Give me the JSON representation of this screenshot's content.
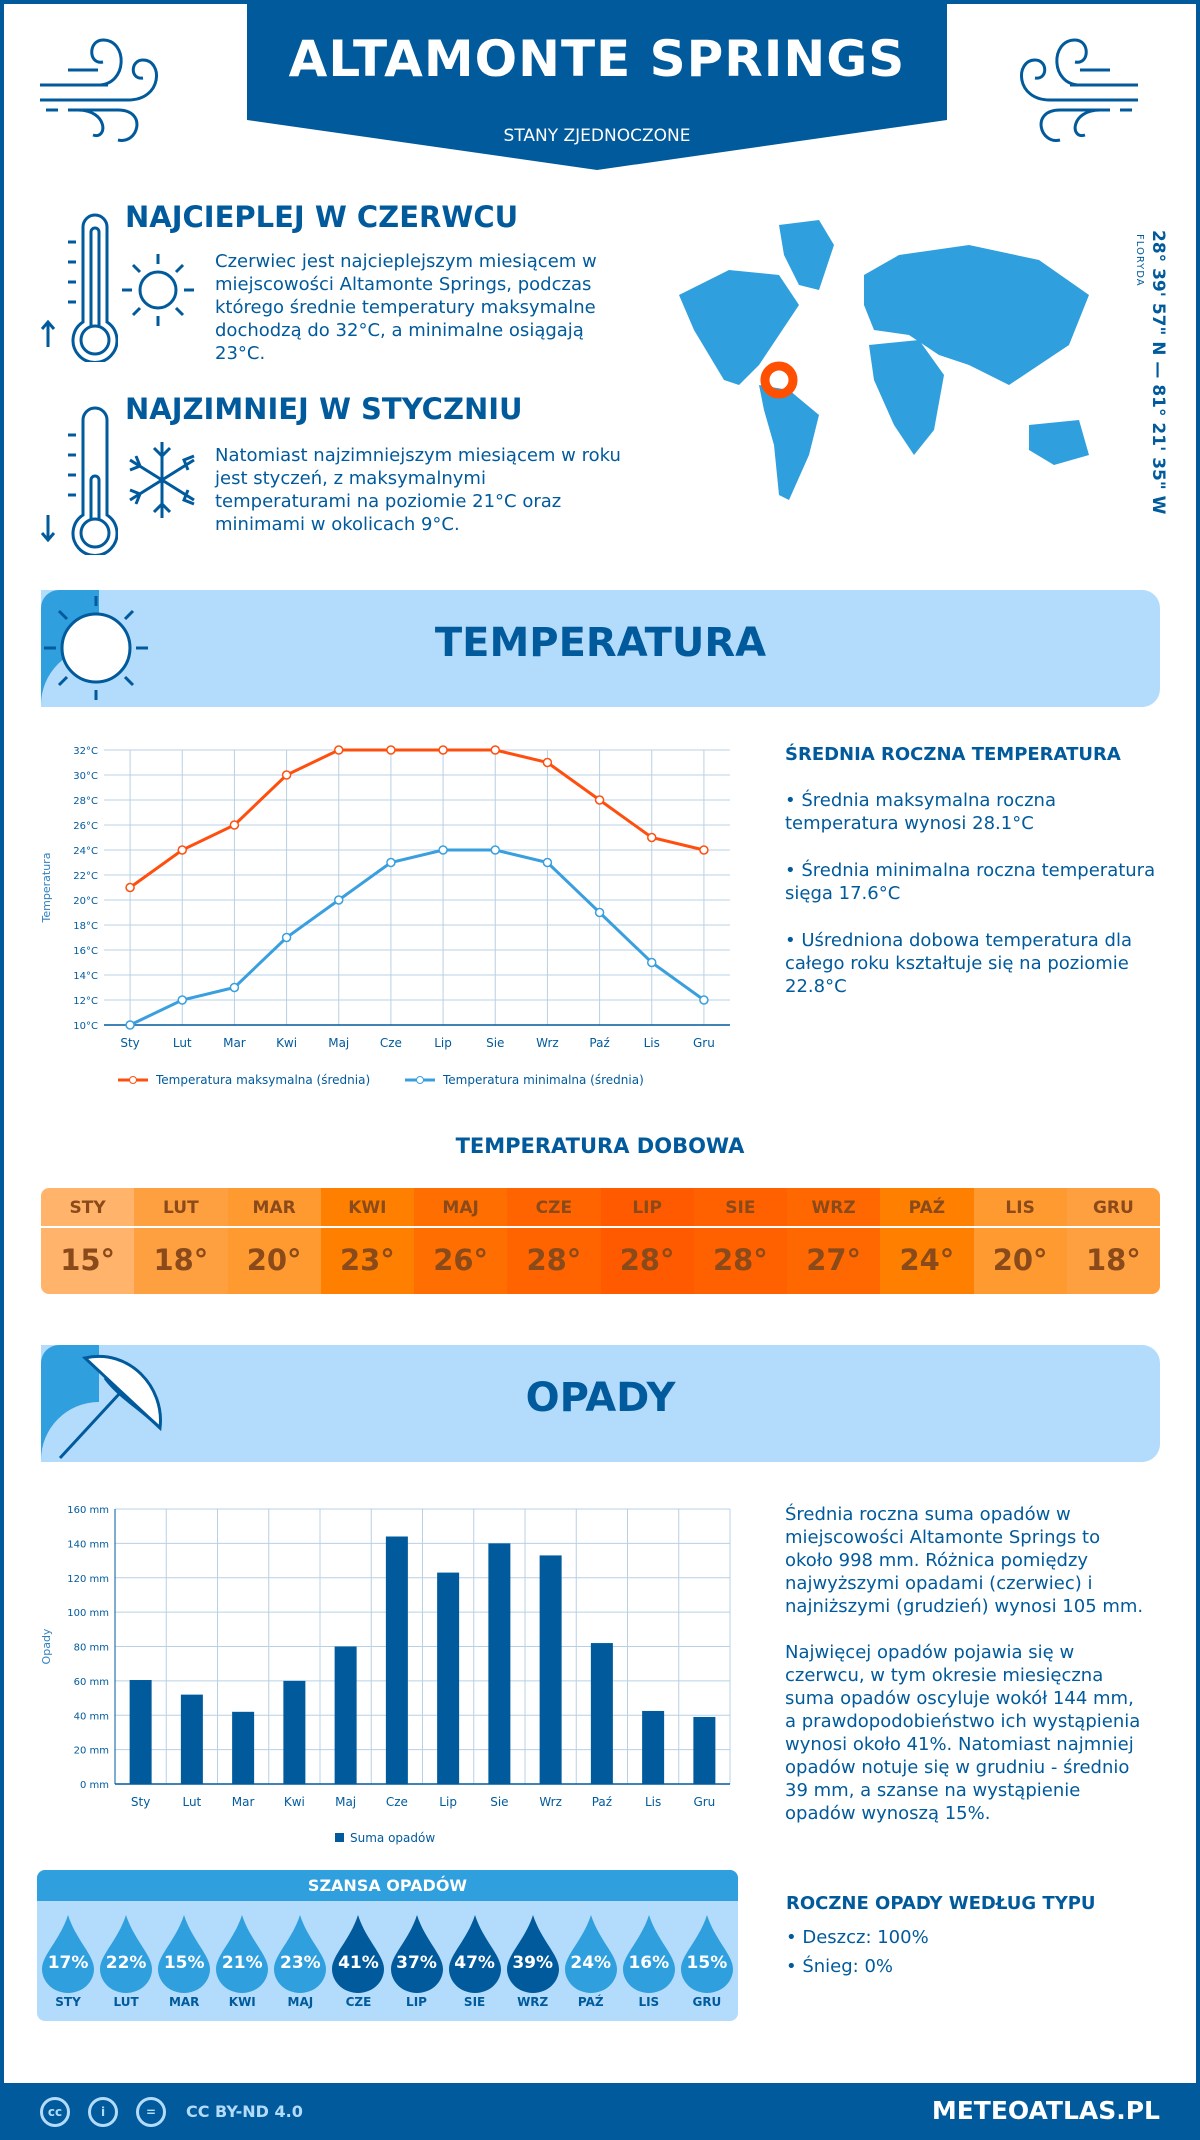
{
  "header": {
    "title": "ALTAMONTE SPRINGS",
    "subtitle": "STANY ZJEDNOCZONE"
  },
  "warmest": {
    "title": "NAJCIEPLEJ W CZERWCU",
    "text": "Czerwiec jest najcieplejszym miesiącem w miejscowości Altamonte Springs, podczas którego średnie temperatury maksymalne dochodzą do 32°C, a minimalne osiągają 23°C."
  },
  "coldest": {
    "title": "NAJZIMNIEJ W STYCZNIU",
    "text": "Natomiast najzimniejszym miesiącem w roku jest styczeń, z maksymalnymi temperaturami na poziomie 21°C oraz minimami w okolicach 9°C."
  },
  "location": {
    "coords": "28° 39' 57\" N — 81° 21' 35\" W",
    "region": "FLORYDA",
    "marker_color": "#ff4f00"
  },
  "temperature_section": {
    "title": "TEMPERATURA"
  },
  "annual_temp": {
    "title": "ŚREDNIA ROCZNA TEMPERATURA",
    "items": [
      "• Średnia maksymalna roczna temperatura wynosi 28.1°C",
      "• Średnia minimalna roczna temperatura sięga 17.6°C",
      "• Uśredniona dobowa temperatura dla całego roku kształtuje się na poziomie 22.8°C"
    ]
  },
  "daily_temp": {
    "title": "TEMPERATURA DOBOWA",
    "months": [
      "STY",
      "LUT",
      "MAR",
      "KWI",
      "MAJ",
      "CZE",
      "LIP",
      "SIE",
      "WRZ",
      "PAŹ",
      "LIS",
      "GRU"
    ],
    "values": [
      "15°",
      "18°",
      "20°",
      "23°",
      "26°",
      "28°",
      "28°",
      "28°",
      "27°",
      "24°",
      "20°",
      "18°"
    ],
    "colors": [
      "#ffb36b",
      "#ffa040",
      "#ff9a30",
      "#ff8000",
      "#ff6e00",
      "#ff6400",
      "#ff5a00",
      "#ff6000",
      "#ff6800",
      "#ff8000",
      "#ff9a30",
      "#ffa040"
    ]
  },
  "precip_section": {
    "title": "OPADY"
  },
  "precip_text": {
    "p1": "Średnia roczna suma opadów w miejscowości Altamonte Springs to około 998 mm. Różnica pomiędzy najwyższymi opadami (czerwiec) i najniższymi (grudzień) wynosi 105 mm.",
    "p2": "Najwięcej opadów pojawia się w czerwcu, w tym okresie miesięczna suma opadów oscyluje wokół 144 mm, a prawdopodobieństwo ich wystąpienia wynosi około 41%. Natomiast najmniej opadów notuje się w grudniu - średnio 39 mm, a szanse na wystąpienie opadów wynoszą 15%."
  },
  "rain_chance": {
    "title": "SZANSA OPADÓW",
    "months": [
      "STY",
      "LUT",
      "MAR",
      "KWI",
      "MAJ",
      "CZE",
      "LIP",
      "SIE",
      "WRZ",
      "PAŹ",
      "LIS",
      "GRU"
    ],
    "values": [
      "17%",
      "22%",
      "15%",
      "21%",
      "23%",
      "41%",
      "37%",
      "47%",
      "39%",
      "24%",
      "16%",
      "15%"
    ]
  },
  "precip_type": {
    "title": "ROCZNE OPADY WEDŁUG TYPU",
    "items": [
      "• Deszcz: 100%",
      "• Śnieg: 0%"
    ]
  },
  "footer": {
    "license": "CC BY-ND 4.0",
    "brand": "METEOATLAS.PL"
  },
  "chart_data": [
    {
      "type": "line",
      "categories": [
        "Sty",
        "Lut",
        "Mar",
        "Kwi",
        "Maj",
        "Cze",
        "Lip",
        "Sie",
        "Wrz",
        "Paź",
        "Lis",
        "Gru"
      ],
      "ylabel": "Temperatura",
      "ylim": [
        10,
        32
      ],
      "yticks": [
        "10°C",
        "12°C",
        "14°C",
        "16°C",
        "18°C",
        "20°C",
        "22°C",
        "24°C",
        "26°C",
        "28°C",
        "30°C",
        "32°C"
      ],
      "grid": true,
      "legend": "bottom",
      "series": [
        {
          "name": "Temperatura maksymalna (średnia)",
          "color": "#ff4f0f",
          "values": [
            21,
            24,
            26,
            30,
            32,
            32,
            32,
            32,
            31,
            28,
            25,
            24
          ]
        },
        {
          "name": "Temperatura minimalna (średnia)",
          "color": "#3a9fde",
          "values": [
            10,
            12,
            13,
            17,
            20,
            23,
            24,
            24,
            23,
            19,
            15,
            12
          ]
        }
      ]
    },
    {
      "type": "bar",
      "categories": [
        "Sty",
        "Lut",
        "Mar",
        "Kwi",
        "Maj",
        "Cze",
        "Lip",
        "Sie",
        "Wrz",
        "Paź",
        "Lis",
        "Gru"
      ],
      "ylabel": "Opady",
      "ylim": [
        0,
        160
      ],
      "yticks": [
        "0 mm",
        "20 mm",
        "40 mm",
        "60 mm",
        "80 mm",
        "100 mm",
        "120 mm",
        "140 mm",
        "160 mm"
      ],
      "grid": true,
      "legend": "bottom",
      "series": [
        {
          "name": "Suma opadów",
          "color": "#005a9c",
          "values": [
            60.5,
            52,
            42,
            60,
            80,
            144,
            123,
            140,
            133,
            82,
            42.5,
            39
          ]
        }
      ]
    }
  ]
}
